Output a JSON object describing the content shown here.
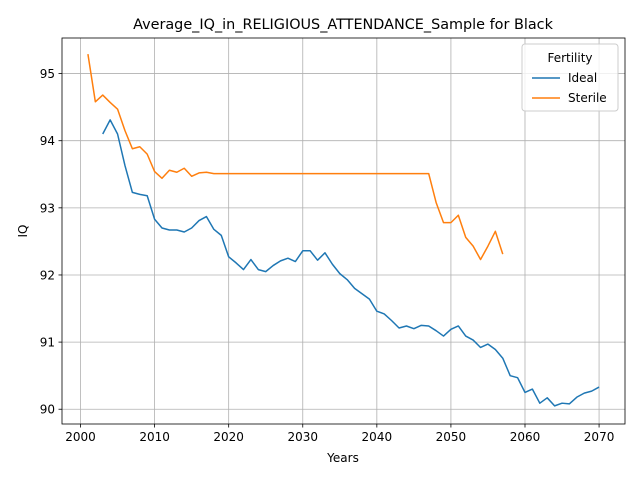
{
  "chart_data": {
    "type": "line",
    "title": "Average_IQ_in_RELIGIOUS_ATTENDANCE_Sample for Black",
    "xlabel": "Years",
    "ylabel": "IQ",
    "xlim": [
      1997.5,
      2073.5
    ],
    "ylim": [
      89.78,
      95.53
    ],
    "xticks": [
      2000,
      2010,
      2020,
      2030,
      2040,
      2050,
      2060,
      2070
    ],
    "yticks": [
      90,
      91,
      92,
      93,
      94,
      95
    ],
    "grid": true,
    "legend": {
      "title": "Fertility",
      "position": "top-right"
    },
    "series": [
      {
        "name": "Ideal",
        "color": "#1f77b4",
        "x": [
          2003,
          2004,
          2005,
          2006,
          2007,
          2008,
          2009,
          2010,
          2011,
          2012,
          2013,
          2014,
          2015,
          2016,
          2017,
          2018,
          2019,
          2020,
          2021,
          2022,
          2023,
          2024,
          2025,
          2026,
          2027,
          2028,
          2029,
          2030,
          2031,
          2032,
          2033,
          2034,
          2035,
          2036,
          2037,
          2038,
          2039,
          2040,
          2041,
          2042,
          2043,
          2044,
          2045,
          2046,
          2047,
          2048,
          2049,
          2050,
          2051,
          2052,
          2053,
          2054,
          2055,
          2056,
          2057,
          2058,
          2059,
          2060,
          2061,
          2062,
          2063,
          2064,
          2065,
          2066,
          2067,
          2068,
          2069,
          2070
        ],
        "y": [
          94.1,
          94.31,
          94.1,
          93.63,
          93.23,
          93.2,
          93.18,
          92.83,
          92.7,
          92.67,
          92.67,
          92.64,
          92.7,
          92.81,
          92.87,
          92.68,
          92.59,
          92.27,
          92.18,
          92.08,
          92.23,
          92.08,
          92.05,
          92.14,
          92.21,
          92.25,
          92.2,
          92.36,
          92.36,
          92.22,
          92.33,
          92.16,
          92.02,
          91.93,
          91.8,
          91.72,
          91.64,
          91.46,
          91.42,
          91.32,
          91.21,
          91.24,
          91.2,
          91.25,
          91.24,
          91.17,
          91.09,
          91.19,
          91.24,
          91.09,
          91.03,
          90.92,
          90.97,
          90.89,
          90.76,
          90.5,
          90.47,
          90.25,
          90.3,
          90.09,
          90.17,
          90.05,
          90.09,
          90.08,
          90.18,
          90.24,
          90.27,
          90.33
        ]
      },
      {
        "name": "Sterile",
        "color": "#ff7f0e",
        "x": [
          2001,
          2002,
          2003,
          2004,
          2005,
          2006,
          2007,
          2008,
          2009,
          2010,
          2011,
          2012,
          2013,
          2014,
          2015,
          2016,
          2017,
          2018,
          2019,
          2020,
          2021,
          2022,
          2023,
          2024,
          2025,
          2026,
          2027,
          2028,
          2029,
          2030,
          2031,
          2032,
          2033,
          2034,
          2035,
          2036,
          2037,
          2038,
          2039,
          2040,
          2041,
          2042,
          2043,
          2044,
          2045,
          2046,
          2047,
          2048,
          2049,
          2050,
          2051,
          2052,
          2053,
          2054,
          2055,
          2056,
          2057
        ],
        "y": [
          95.29,
          94.58,
          94.68,
          94.57,
          94.47,
          94.15,
          93.88,
          93.91,
          93.8,
          93.54,
          93.44,
          93.56,
          93.53,
          93.59,
          93.47,
          93.52,
          93.53,
          93.51,
          93.51,
          93.51,
          93.51,
          93.51,
          93.51,
          93.51,
          93.51,
          93.51,
          93.51,
          93.51,
          93.51,
          93.51,
          93.51,
          93.51,
          93.51,
          93.51,
          93.51,
          93.51,
          93.51,
          93.51,
          93.51,
          93.51,
          93.51,
          93.51,
          93.51,
          93.51,
          93.51,
          93.51,
          93.51,
          93.08,
          92.78,
          92.78,
          92.89,
          92.56,
          92.43,
          92.23,
          92.43,
          92.65,
          92.31
        ]
      }
    ]
  }
}
